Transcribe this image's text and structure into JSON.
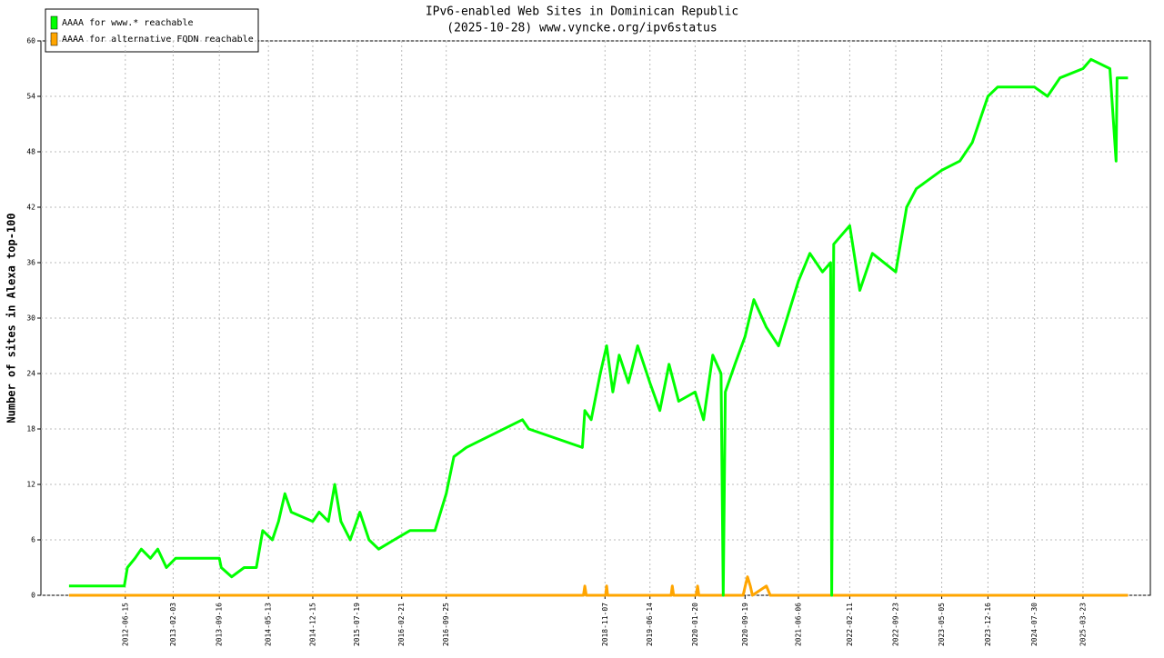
{
  "chart_data": {
    "type": "line",
    "title": "IPv6-enabled Web Sites in Dominican Republic",
    "subtitle": "(2025-10-28) www.vyncke.org/ipv6status",
    "y_label": "Number of sites in Alexa top-100",
    "xlim": [
      "2011-05-01",
      "2026-02-14"
    ],
    "xticks": [
      "2012-06-15",
      "2013-02-03",
      "2013-09-16",
      "2014-05-13",
      "2014-12-15",
      "2015-07-19",
      "2016-02-21",
      "2016-09-25",
      "2018-11-07",
      "2019-06-14",
      "2020-01-20",
      "2020-09-19",
      "2021-06-06",
      "2022-02-11",
      "2022-09-23",
      "2023-05-05",
      "2023-12-16",
      "2024-07-30",
      "2025-03-23"
    ],
    "ylim": [
      0,
      60
    ],
    "yticks": [
      0,
      6,
      12,
      18,
      24,
      30,
      36,
      42,
      48,
      54,
      60
    ],
    "grid": true,
    "legend": "top-left",
    "series": [
      {
        "name": "AAAA for www.* reachable",
        "color": "#00ff00",
        "x": [
          "2011-09-15",
          "2012-06-10",
          "2012-06-25",
          "2012-08-01",
          "2012-09-01",
          "2012-10-15",
          "2012-11-20",
          "2013-01-01",
          "2013-02-15",
          "2013-06-01",
          "2013-09-16",
          "2013-09-25",
          "2013-11-15",
          "2014-01-15",
          "2014-03-15",
          "2014-04-15",
          "2014-06-01",
          "2014-07-01",
          "2014-08-01",
          "2014-09-01",
          "2014-12-15",
          "2015-01-15",
          "2015-03-01",
          "2015-04-01",
          "2015-05-01",
          "2015-06-15",
          "2015-08-01",
          "2015-09-15",
          "2015-11-01",
          "2016-01-15",
          "2016-04-01",
          "2016-08-01",
          "2016-09-25",
          "2016-11-01",
          "2017-01-01",
          "2017-10-01",
          "2017-11-01",
          "2018-07-20",
          "2018-08-01",
          "2018-09-01",
          "2018-10-15",
          "2018-11-15",
          "2018-12-15",
          "2019-01-15",
          "2019-03-01",
          "2019-04-15",
          "2019-06-14",
          "2019-08-01",
          "2019-09-15",
          "2019-11-01",
          "2020-01-20",
          "2020-03-01",
          "2020-04-15",
          "2020-05-25",
          "2020-06-05",
          "2020-06-15",
          "2020-08-01",
          "2020-09-19",
          "2020-11-01",
          "2021-01-01",
          "2021-03-01",
          "2021-06-06",
          "2021-08-01",
          "2021-10-01",
          "2021-11-10",
          "2021-11-15",
          "2021-11-25",
          "2022-02-11",
          "2022-04-01",
          "2022-06-01",
          "2022-09-23",
          "2022-11-15",
          "2023-01-01",
          "2023-05-05",
          "2023-08-01",
          "2023-10-01",
          "2023-12-16",
          "2024-02-01",
          "2024-07-30",
          "2024-10-01",
          "2024-12-01",
          "2025-03-23",
          "2025-05-01",
          "2025-08-01",
          "2025-08-31",
          "2025-09-05",
          "2025-10-28"
        ],
        "values": [
          1,
          1,
          3,
          4,
          5,
          4,
          5,
          3,
          4,
          4,
          4,
          3,
          2,
          3,
          3,
          7,
          6,
          8,
          11,
          9,
          8,
          9,
          8,
          12,
          8,
          6,
          9,
          6,
          5,
          6,
          7,
          7,
          11,
          15,
          16,
          19,
          18,
          16,
          20,
          19,
          24,
          27,
          22,
          26,
          23,
          27,
          23,
          20,
          25,
          21,
          22,
          19,
          26,
          24,
          0,
          22,
          25,
          28,
          32,
          29,
          27,
          34,
          37,
          35,
          36,
          0,
          38,
          40,
          33,
          37,
          35,
          42,
          44,
          46,
          47,
          49,
          54,
          55,
          55,
          54,
          56,
          57,
          58,
          57,
          47,
          56,
          56
        ]
      },
      {
        "name": "AAAA for alternative FQDN reachable",
        "color": "#ffa500",
        "x": [
          "2011-09-15",
          "2018-07-25",
          "2018-08-01",
          "2018-08-08",
          "2018-11-10",
          "2018-11-15",
          "2018-11-20",
          "2019-09-25",
          "2019-10-01",
          "2019-10-07",
          "2020-01-25",
          "2020-02-01",
          "2020-02-07",
          "2020-09-10",
          "2020-09-20",
          "2020-10-01",
          "2020-10-15",
          "2020-10-25",
          "2021-01-01",
          "2021-01-20",
          "2025-10-28"
        ],
        "values": [
          0,
          0,
          1,
          0,
          0,
          1,
          0,
          0,
          1,
          0,
          0,
          1,
          0,
          0,
          1,
          2,
          1,
          0,
          1,
          0,
          0
        ]
      }
    ]
  }
}
